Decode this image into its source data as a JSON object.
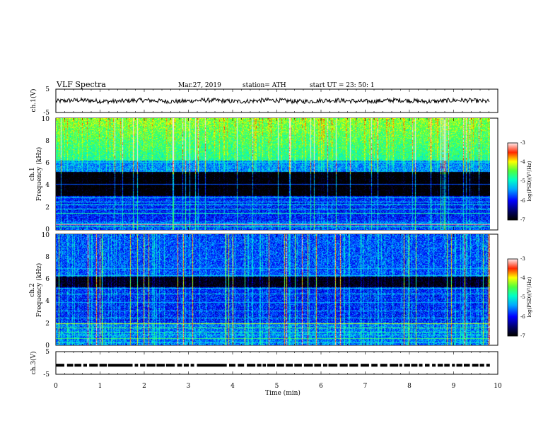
{
  "header": {
    "title": "VLF Spectra",
    "date": "Mar.27, 2019",
    "station": "station= ATH",
    "start": "start UT = 23: 50: 1"
  },
  "chart_data": [
    {
      "type": "line",
      "ylabel": "ch.1(V)",
      "ylim": [
        -5,
        5
      ],
      "xlim": [
        0,
        10
      ],
      "x_end": 9.82,
      "y_ticks": [
        "5",
        "-5"
      ],
      "level": 0.0,
      "amplitude": 1.2
    },
    {
      "type": "heatmap",
      "ylabel": "ch.1",
      "ylabel2": "Frequency (kHz)",
      "ylim": [
        0,
        10
      ],
      "xlim": [
        0,
        10
      ],
      "x_end": 9.82,
      "y_ticks": [
        "0",
        "2",
        "4",
        "6",
        "8",
        "10"
      ],
      "colorbar": {
        "label": "log(PSD)(V²/Hz)",
        "range": [
          -7,
          -3
        ],
        "ticks": [
          "-3",
          "-4",
          "-5",
          "-6",
          "-7"
        ]
      }
    },
    {
      "type": "heatmap",
      "ylabel": "ch.2",
      "ylabel2": "Frequency (kHz)",
      "ylim": [
        0,
        10
      ],
      "xlim": [
        0,
        10
      ],
      "x_end": 9.82,
      "y_ticks": [
        "0",
        "2",
        "4",
        "6",
        "8",
        "10"
      ],
      "colorbar": {
        "label": "log(PSD)(V²/Hz)",
        "range": [
          -7,
          -3
        ],
        "ticks": [
          "-3",
          "-4",
          "-5",
          "-6",
          "-7"
        ]
      }
    },
    {
      "type": "line",
      "ylabel": "ch.3(V)",
      "ylim": [
        -5,
        5
      ],
      "xlim": [
        0,
        10
      ],
      "x_end": 9.82,
      "y_ticks": [
        "5",
        "-5"
      ],
      "level": -1.0,
      "xlabel": "Time (min)",
      "x_ticks": [
        "0",
        "1",
        "2",
        "3",
        "4",
        "5",
        "6",
        "7",
        "8",
        "9",
        "10"
      ]
    }
  ]
}
